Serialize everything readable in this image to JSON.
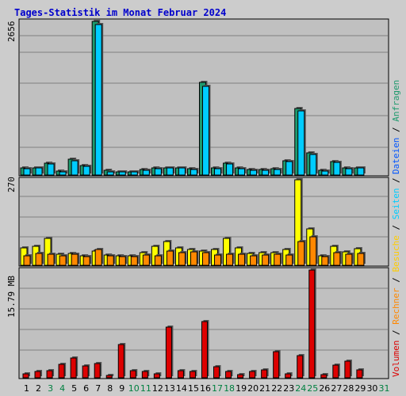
{
  "title": "Tages-Statistik im Monat Februar 2024",
  "colors": {
    "background": "#cccccc",
    "plot_background": "#c0c0c0",
    "title": "#0000cc",
    "hits": "#1f9a6e",
    "files": "#00ccff",
    "sites": "#ffff00",
    "visits": "#ff8800",
    "pages": "#00d4e8",
    "kbytes": "#dd0000",
    "weekday_label": "#000000",
    "weekend_label": "#008040"
  },
  "legend_right_top": [
    {
      "text": "Dateien",
      "color": "#0055ff"
    },
    {
      "text": "/",
      "color": "#000000"
    },
    {
      "text": "Anfragen",
      "color": "#1f9a6e"
    }
  ],
  "legend_right_bottom": [
    {
      "text": "Volumen",
      "color": "#dd0000"
    },
    {
      "text": "/",
      "color": "#000000"
    },
    {
      "text": "Rechner",
      "color": "#ff8800"
    },
    {
      "text": "/",
      "color": "#000000"
    },
    {
      "text": "Besuche",
      "color": "#ffcc00"
    },
    {
      "text": "/",
      "color": "#000000"
    },
    {
      "text": "Seiten",
      "color": "#00ccff"
    },
    {
      "text": "/",
      "color": "#000000"
    }
  ],
  "chart_data": [
    {
      "type": "bar",
      "panel": "top",
      "max_label": "2656",
      "ymax": 2656,
      "categories": [
        "1",
        "2",
        "3",
        "4",
        "5",
        "6",
        "7",
        "8",
        "9",
        "10",
        "11",
        "12",
        "13",
        "14",
        "15",
        "16",
        "17",
        "18",
        "19",
        "20",
        "21",
        "22",
        "23",
        "24",
        "25",
        "26",
        "27",
        "28",
        "29",
        "30",
        "31"
      ],
      "weekend": [
        3,
        4,
        10,
        11,
        17,
        18,
        24,
        25,
        31
      ],
      "series": [
        {
          "name": "Anfragen",
          "values": [
            120,
            130,
            210,
            70,
            270,
            160,
            2650,
            80,
            60,
            60,
            90,
            120,
            130,
            130,
            110,
            1600,
            120,
            200,
            120,
            90,
            90,
            110,
            250,
            1150,
            380,
            80,
            230,
            120,
            130,
            0,
            0
          ]
        },
        {
          "name": "Dateien",
          "values": [
            110,
            130,
            190,
            60,
            250,
            150,
            2600,
            60,
            50,
            50,
            80,
            110,
            120,
            120,
            100,
            1540,
            110,
            190,
            110,
            80,
            80,
            100,
            230,
            1110,
            360,
            70,
            220,
            110,
            120,
            0,
            0
          ]
        }
      ]
    },
    {
      "type": "bar",
      "panel": "middle",
      "max_label": "270",
      "ymax": 270,
      "categories": [
        "1",
        "2",
        "3",
        "4",
        "5",
        "6",
        "7",
        "8",
        "9",
        "10",
        "11",
        "12",
        "13",
        "14",
        "15",
        "16",
        "17",
        "18",
        "19",
        "20",
        "21",
        "22",
        "23",
        "24",
        "25",
        "26",
        "27",
        "28",
        "29",
        "30",
        "31"
      ],
      "series": [
        {
          "name": "Seiten",
          "values": [
            0,
            0,
            0,
            0,
            0,
            0,
            0,
            0,
            0,
            0,
            0,
            0,
            0,
            0,
            0,
            0,
            0,
            0,
            0,
            0,
            0,
            0,
            0,
            0,
            0,
            0,
            0,
            0,
            0,
            0,
            0
          ]
        },
        {
          "name": "Besuche",
          "values": [
            55,
            60,
            85,
            35,
            38,
            30,
            45,
            32,
            30,
            30,
            40,
            60,
            75,
            55,
            50,
            45,
            50,
            85,
            55,
            38,
            40,
            40,
            50,
            270,
            115,
            30,
            60,
            42,
            52,
            0,
            0
          ]
        },
        {
          "name": "Rechner",
          "values": [
            30,
            38,
            35,
            30,
            35,
            28,
            50,
            30,
            28,
            28,
            32,
            30,
            45,
            40,
            42,
            40,
            32,
            35,
            35,
            30,
            32,
            35,
            32,
            75,
            90,
            28,
            40,
            35,
            38,
            0,
            0
          ]
        }
      ]
    },
    {
      "type": "bar",
      "panel": "bottom",
      "max_label": "15.79 MB",
      "ymax": 15.79,
      "series": [
        {
          "name": "Volumen",
          "values": [
            0.6,
            0.9,
            1.0,
            2.0,
            2.9,
            1.7,
            2.1,
            0.3,
            4.9,
            1.1,
            0.9,
            0.6,
            7.4,
            1.0,
            0.9,
            8.2,
            1.6,
            0.9,
            0.5,
            0.9,
            1.2,
            3.8,
            0.6,
            3.2,
            15.79,
            0.5,
            1.9,
            2.4,
            1.2,
            0,
            0
          ]
        }
      ]
    }
  ]
}
